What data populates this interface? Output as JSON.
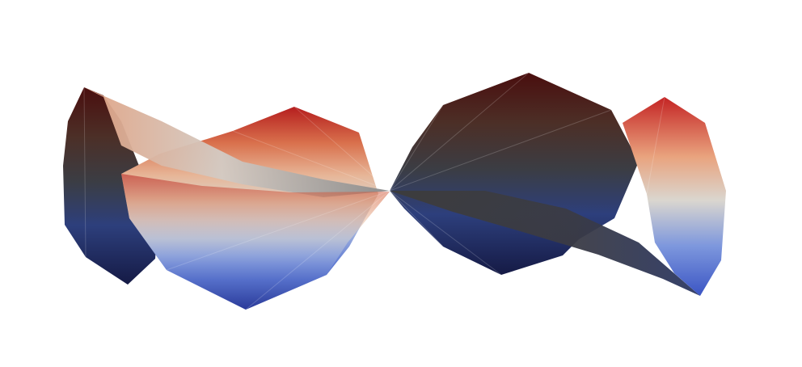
{
  "scene": {
    "background": "#ffffff",
    "description_colormap": [
      "#1b1f4e",
      "#3a4fb0",
      "#8fa6e0",
      "#d9d7d2",
      "#e9a07a",
      "#c8302a",
      "#4a1512"
    ],
    "render_style": "shaded twisted surface, cool-to-warm colormap"
  }
}
